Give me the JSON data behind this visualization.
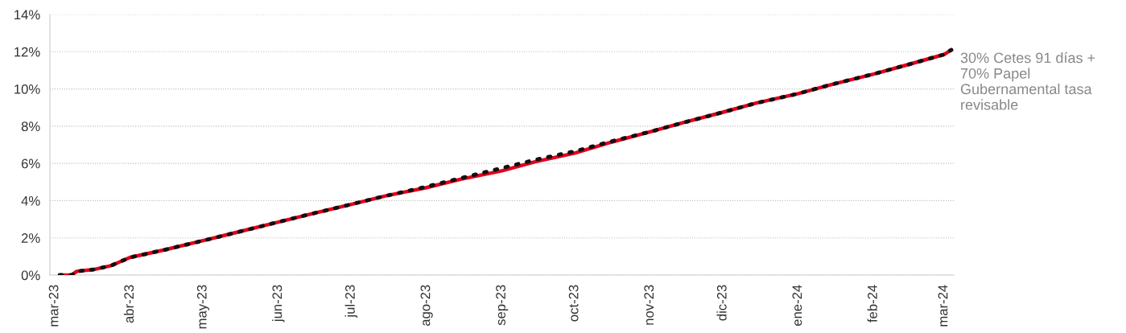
{
  "chart_data": {
    "type": "line",
    "x": [
      "2023-03-03",
      "2023-03-08",
      "2023-03-10",
      "2023-03-17",
      "2023-03-24",
      "2023-04-01",
      "2023-04-15",
      "2023-05-01",
      "2023-05-15",
      "2023-06-01",
      "2023-06-15",
      "2023-07-01",
      "2023-07-15",
      "2023-08-01",
      "2023-08-15",
      "2023-09-01",
      "2023-09-15",
      "2023-10-01",
      "2023-10-15",
      "2023-11-01",
      "2023-11-15",
      "2023-12-01",
      "2023-12-15",
      "2024-01-01",
      "2024-01-15",
      "2024-02-01",
      "2024-02-15",
      "2024-03-01",
      "2024-03-04"
    ],
    "series": [
      {
        "color": "#e3001b",
        "line_style": "solid",
        "values": [
          0,
          0,
          0.2,
          0.3,
          0.5,
          0.95,
          1.35,
          1.85,
          2.3,
          2.85,
          3.3,
          3.8,
          4.25,
          4.7,
          5.15,
          5.6,
          6.1,
          6.55,
          7.1,
          7.7,
          8.2,
          8.75,
          9.25,
          9.75,
          10.25,
          10.8,
          11.3,
          11.85,
          12.1
        ]
      },
      {
        "name": "30% Cetes 91 días + 70% Papel Gubernamental tasa revisable",
        "color": "#111111",
        "line_style": "dotted",
        "values": [
          0,
          0,
          0.2,
          0.3,
          0.5,
          0.95,
          1.35,
          1.85,
          2.3,
          2.85,
          3.3,
          3.8,
          4.25,
          4.75,
          5.2,
          5.75,
          6.2,
          6.65,
          7.15,
          7.7,
          8.2,
          8.75,
          9.25,
          9.75,
          10.25,
          10.8,
          11.3,
          11.85,
          12.1
        ]
      }
    ],
    "xlim": [
      "2023-02-27",
      "2024-03-05"
    ],
    "xticks": [
      {
        "value": "2023-03-01",
        "label": "mar-23"
      },
      {
        "value": "2023-04-01",
        "label": "abr-23"
      },
      {
        "value": "2023-05-01",
        "label": "may-23"
      },
      {
        "value": "2023-06-01",
        "label": "jun-23"
      },
      {
        "value": "2023-07-01",
        "label": "jul-23"
      },
      {
        "value": "2023-08-01",
        "label": "ago-23"
      },
      {
        "value": "2023-09-01",
        "label": "sep-23"
      },
      {
        "value": "2023-10-01",
        "label": "oct-23"
      },
      {
        "value": "2023-11-01",
        "label": "nov-23"
      },
      {
        "value": "2023-12-01",
        "label": "dic-23"
      },
      {
        "value": "2024-01-01",
        "label": "ene-24"
      },
      {
        "value": "2024-02-01",
        "label": "feb-24"
      },
      {
        "value": "2024-03-01",
        "label": "mar-24"
      }
    ],
    "ylim": [
      0,
      14
    ],
    "yticks": [
      {
        "value": 0,
        "label": "0%"
      },
      {
        "value": 2,
        "label": "2%"
      },
      {
        "value": 4,
        "label": "4%"
      },
      {
        "value": 6,
        "label": "6%"
      },
      {
        "value": 8,
        "label": "8%"
      },
      {
        "value": 10,
        "label": "10%"
      },
      {
        "value": 12,
        "label": "12%"
      },
      {
        "value": 14,
        "label": "14%"
      }
    ],
    "grid": "y",
    "legend": "right"
  }
}
